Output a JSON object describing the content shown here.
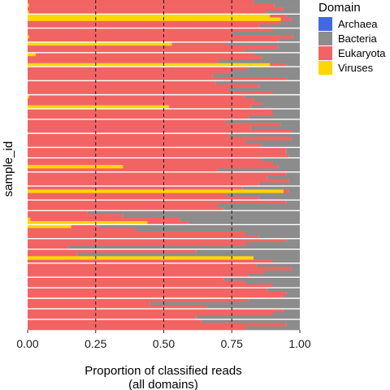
{
  "chart_data": {
    "type": "bar",
    "orientation": "horizontal",
    "stacked": true,
    "xlabel": "Proportion of classified reads\n(all domains)",
    "ylabel": "sample_id",
    "xlim": [
      0,
      1
    ],
    "x_ticks": [
      "0.00",
      "0.25",
      "0.50",
      "0.75",
      "1.00"
    ],
    "reference_lines_x": [
      0.25,
      0.5,
      0.75
    ],
    "grid": false,
    "legend": {
      "title": "Domain",
      "position": "right",
      "entries": [
        "Archaea",
        "Bacteria",
        "Eukaryota",
        "Viruses"
      ]
    },
    "colors": {
      "Archaea": "#4169E1",
      "Bacteria": "#8C8C8C",
      "Eukaryota": "#F26464",
      "Viruses": "#FFD700"
    },
    "series": [
      {
        "name": "Viruses",
        "values": [
          0,
          0.005,
          0,
          0.005,
          0.89,
          0.93,
          0,
          0,
          0,
          0,
          0.005,
          0,
          0.53,
          0,
          0,
          0.03,
          0,
          0,
          0.89,
          0,
          0,
          0,
          0,
          0,
          0,
          0,
          0,
          0.005,
          0,
          0,
          0.52,
          0,
          0,
          0,
          0,
          0,
          0,
          0,
          0,
          0,
          0,
          0,
          0,
          0,
          0,
          0,
          0,
          0.35,
          0,
          0,
          0,
          0,
          0,
          0,
          0.94,
          0,
          0,
          0,
          0,
          0,
          0,
          0,
          0.01,
          0.44,
          0.16,
          0,
          0,
          0,
          0,
          0,
          0,
          0,
          0,
          0.83,
          0,
          0,
          0,
          0,
          0,
          0,
          0,
          0,
          0,
          0,
          0,
          0,
          0,
          0,
          0,
          0,
          0,
          0,
          0,
          0
        ]
      },
      {
        "name": "Eukaryota",
        "values": [
          0.83,
          0.9,
          0.94,
          0.87,
          0.06,
          0.04,
          0.93,
          0.85,
          0.9,
          0.75,
          0.97,
          0.92,
          0.2,
          0.92,
          0.8,
          0.8,
          0.86,
          0.7,
          0.06,
          0.81,
          0.75,
          0.68,
          0.95,
          0.69,
          0.85,
          0.74,
          0.9,
          0.79,
          0.83,
          0.86,
          0.3,
          0.9,
          0.9,
          0.81,
          0.73,
          0.93,
          0.82,
          0.97,
          0.74,
          0.97,
          0.8,
          0.86,
          0.95,
          0.95,
          0.96,
          0.86,
          0.9,
          0.57,
          0.7,
          0.95,
          0.88,
          0.96,
          0.85,
          0.79,
          0.02,
          0.73,
          0.85,
          0.95,
          0.7,
          0.72,
          0.22,
          0.35,
          0.55,
          0.15,
          0.1,
          0.4,
          0.8,
          0.85,
          0.95,
          0.8,
          0.15,
          0.62,
          0.18,
          0.0,
          0.9,
          0.84,
          0.97,
          0.87,
          0.81,
          0.72,
          0.8,
          0.9,
          0.88,
          0.95,
          0.94,
          0.81,
          0.45,
          0.66,
          0.94,
          0.9,
          0.62,
          0.64,
          0.95,
          0.8
        ]
      },
      {
        "name": "Bacteria",
        "values": [
          0.17,
          0.095,
          0.06,
          0.125,
          0.05,
          0.03,
          0.07,
          0.15,
          0.1,
          0.25,
          0.025,
          0.08,
          0.27,
          0.08,
          0.2,
          0.17,
          0.14,
          0.3,
          0.05,
          0.19,
          0.25,
          0.32,
          0.05,
          0.31,
          0.15,
          0.26,
          0.1,
          0.205,
          0.17,
          0.14,
          0.18,
          0.1,
          0.1,
          0.19,
          0.27,
          0.07,
          0.18,
          0.03,
          0.26,
          0.03,
          0.2,
          0.14,
          0.05,
          0.05,
          0.04,
          0.14,
          0.1,
          0.08,
          0.3,
          0.05,
          0.12,
          0.04,
          0.15,
          0.21,
          0.04,
          0.27,
          0.15,
          0.05,
          0.3,
          0.28,
          0.78,
          0.65,
          0.44,
          0.41,
          0.74,
          0.6,
          0.2,
          0.15,
          0.05,
          0.2,
          0.85,
          0.38,
          0.82,
          0.17,
          0.1,
          0.16,
          0.03,
          0.13,
          0.19,
          0.28,
          0.2,
          0.1,
          0.12,
          0.05,
          0.06,
          0.19,
          0.55,
          0.34,
          0.06,
          0.1,
          0.38,
          0.36,
          0.05,
          0.2
        ]
      },
      {
        "name": "Archaea",
        "values": [
          0,
          0,
          0,
          0,
          0,
          0,
          0,
          0,
          0,
          0,
          0,
          0,
          0,
          0,
          0,
          0,
          0,
          0,
          0,
          0,
          0,
          0,
          0,
          0,
          0,
          0,
          0,
          0,
          0,
          0,
          0,
          0,
          0,
          0,
          0,
          0,
          0,
          0,
          0,
          0,
          0,
          0,
          0,
          0,
          0,
          0,
          0,
          0,
          0,
          0,
          0,
          0,
          0,
          0,
          0,
          0,
          0,
          0,
          0,
          0,
          0,
          0,
          0,
          0,
          0,
          0,
          0,
          0,
          0,
          0,
          0,
          0,
          0,
          0,
          0,
          0,
          0,
          0,
          0,
          0,
          0,
          0,
          0,
          0,
          0,
          0,
          0,
          0,
          0,
          0,
          0,
          0,
          0,
          0
        ]
      }
    ],
    "facet_break_after": [
      3,
      7,
      11,
      14,
      18,
      22,
      26,
      30,
      33,
      37,
      41,
      44,
      48,
      52,
      56,
      59,
      63,
      67,
      70,
      74,
      78,
      81,
      84,
      87,
      90
    ]
  }
}
